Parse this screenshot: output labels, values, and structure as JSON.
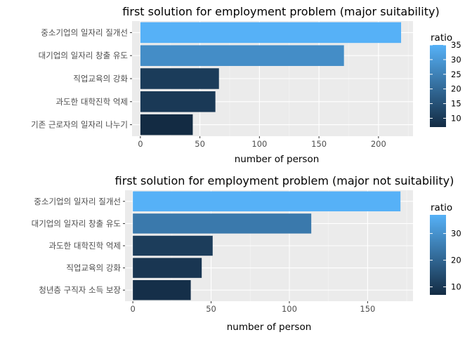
{
  "chart_data": [
    {
      "type": "bar",
      "orientation": "horizontal",
      "title": "first solution for employment problem (major suitability)",
      "xlabel": "number of person",
      "ylabel": "",
      "xlim": [
        -7,
        229
      ],
      "xticks": [
        0,
        50,
        100,
        150,
        200
      ],
      "categories": [
        "중소기업의 일자리 질개선",
        "대기업의 일자리 창출 유도",
        "직업교육의 강화",
        "과도한 대학진학 억제",
        "기존 근로자의 일자리 나누기"
      ],
      "values": [
        219,
        171,
        66,
        63,
        44
      ],
      "ratio": [
        35,
        27.5,
        10.5,
        10,
        7
      ],
      "legend": {
        "title": "ratio",
        "ticks": [
          10,
          15,
          20,
          25,
          30,
          35
        ],
        "range": [
          7,
          35
        ],
        "placement": "right"
      },
      "grid": true
    },
    {
      "type": "bar",
      "orientation": "horizontal",
      "title": "first solution for employment problem (major not suitability)",
      "xlabel": "number of person",
      "ylabel": "",
      "xlim": [
        -5,
        179
      ],
      "xticks": [
        0,
        50,
        100,
        150
      ],
      "categories": [
        "중소기업의 일자리 질개선",
        "대기업의 일자리 창출 유도",
        "과도한 대학진학 억제",
        "직업교육의 강화",
        "청년층 구직자 소득 보장"
      ],
      "values": [
        171,
        114,
        51,
        44,
        37
      ],
      "ratio": [
        37,
        24.5,
        11,
        9.5,
        8
      ],
      "legend": {
        "title": "ratio",
        "ticks": [
          10,
          20,
          30
        ],
        "range": [
          7,
          37
        ],
        "placement": "right"
      },
      "grid": true
    }
  ],
  "colors": {
    "low": "#132B43",
    "high": "#56B1F7",
    "panel": "#EBEBEB",
    "grid_major": "#ffffff",
    "grid_minor": "#F5F5F5"
  }
}
